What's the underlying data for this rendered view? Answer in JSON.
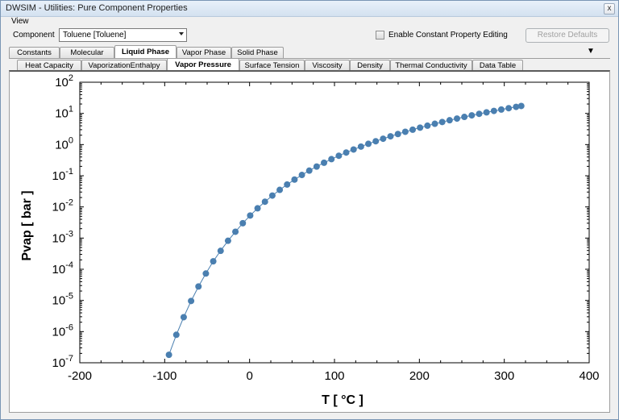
{
  "window": {
    "title": "DWSIM - Utilities: Pure Component Properties",
    "close_glyph": "x"
  },
  "menu": {
    "view": "View"
  },
  "toolbar": {
    "component_label": "Component",
    "component_value": "Toluene [Toluene]",
    "constant_editing_label": "Enable Constant Property Editing",
    "restore_label": "Restore Defaults"
  },
  "tabs_top": [
    {
      "label": "Constants"
    },
    {
      "label": "Molecular"
    },
    {
      "label": "Liquid Phase",
      "active": true
    },
    {
      "label": "Vapor Phase"
    },
    {
      "label": "Solid Phase"
    }
  ],
  "tabs_sub": [
    {
      "label": "Heat Capacity"
    },
    {
      "label": "VaporizationEnthalpy"
    },
    {
      "label": "Vapor Pressure",
      "active": true
    },
    {
      "label": "Surface Tension"
    },
    {
      "label": "Viscosity"
    },
    {
      "label": "Density"
    },
    {
      "label": "Thermal Conductivity"
    },
    {
      "label": "Data Table"
    }
  ],
  "chart_data": {
    "type": "scatter",
    "title": "",
    "xlabel": "T [ °C ]",
    "ylabel": "Pvap [ bar ]",
    "xlim": [
      -200,
      400
    ],
    "xticks": [
      -200,
      -100,
      0,
      100,
      200,
      300,
      400
    ],
    "ylim": [
      1e-07,
      100
    ],
    "yscale": "log",
    "yticks": [
      -7,
      -6,
      -5,
      -4,
      -3,
      -2,
      -1,
      0,
      1,
      2
    ],
    "series": [
      {
        "color": "#4a7fb0",
        "x": [
          -95,
          -86.3,
          -77.6,
          -68.9,
          -60.2,
          -51.5,
          -42.8,
          -34.1,
          -25.4,
          -16.7,
          -8.0,
          0.7,
          9.4,
          18.1,
          26.8,
          35.5,
          44.2,
          52.9,
          61.6,
          70.3,
          79.0,
          87.7,
          96.4,
          105.1,
          113.8,
          122.5,
          131.2,
          139.9,
          148.6,
          157.3,
          166.0,
          174.7,
          183.4,
          192.1,
          200.8,
          209.5,
          218.2,
          226.9,
          235.6,
          244.3,
          253.0,
          261.7,
          270.4,
          279.1,
          287.8,
          296.5,
          305.2,
          313.9,
          320
        ],
        "y": [
          1.8e-07,
          7.9e-07,
          2.9e-06,
          9.6e-06,
          2.8e-05,
          7.3e-05,
          0.00018,
          0.00039,
          0.00082,
          0.0016,
          0.003,
          0.0053,
          0.009,
          0.0147,
          0.0231,
          0.0352,
          0.0522,
          0.0753,
          0.106,
          0.146,
          0.197,
          0.261,
          0.341,
          0.438,
          0.555,
          0.695,
          0.861,
          1.055,
          1.28,
          1.54,
          1.84,
          2.18,
          2.57,
          3.0,
          3.49,
          4.03,
          4.64,
          5.3,
          6.03,
          6.83,
          7.7,
          8.66,
          9.69,
          10.8,
          12.0,
          13.3,
          14.7,
          16.2,
          17.3
        ]
      }
    ]
  }
}
